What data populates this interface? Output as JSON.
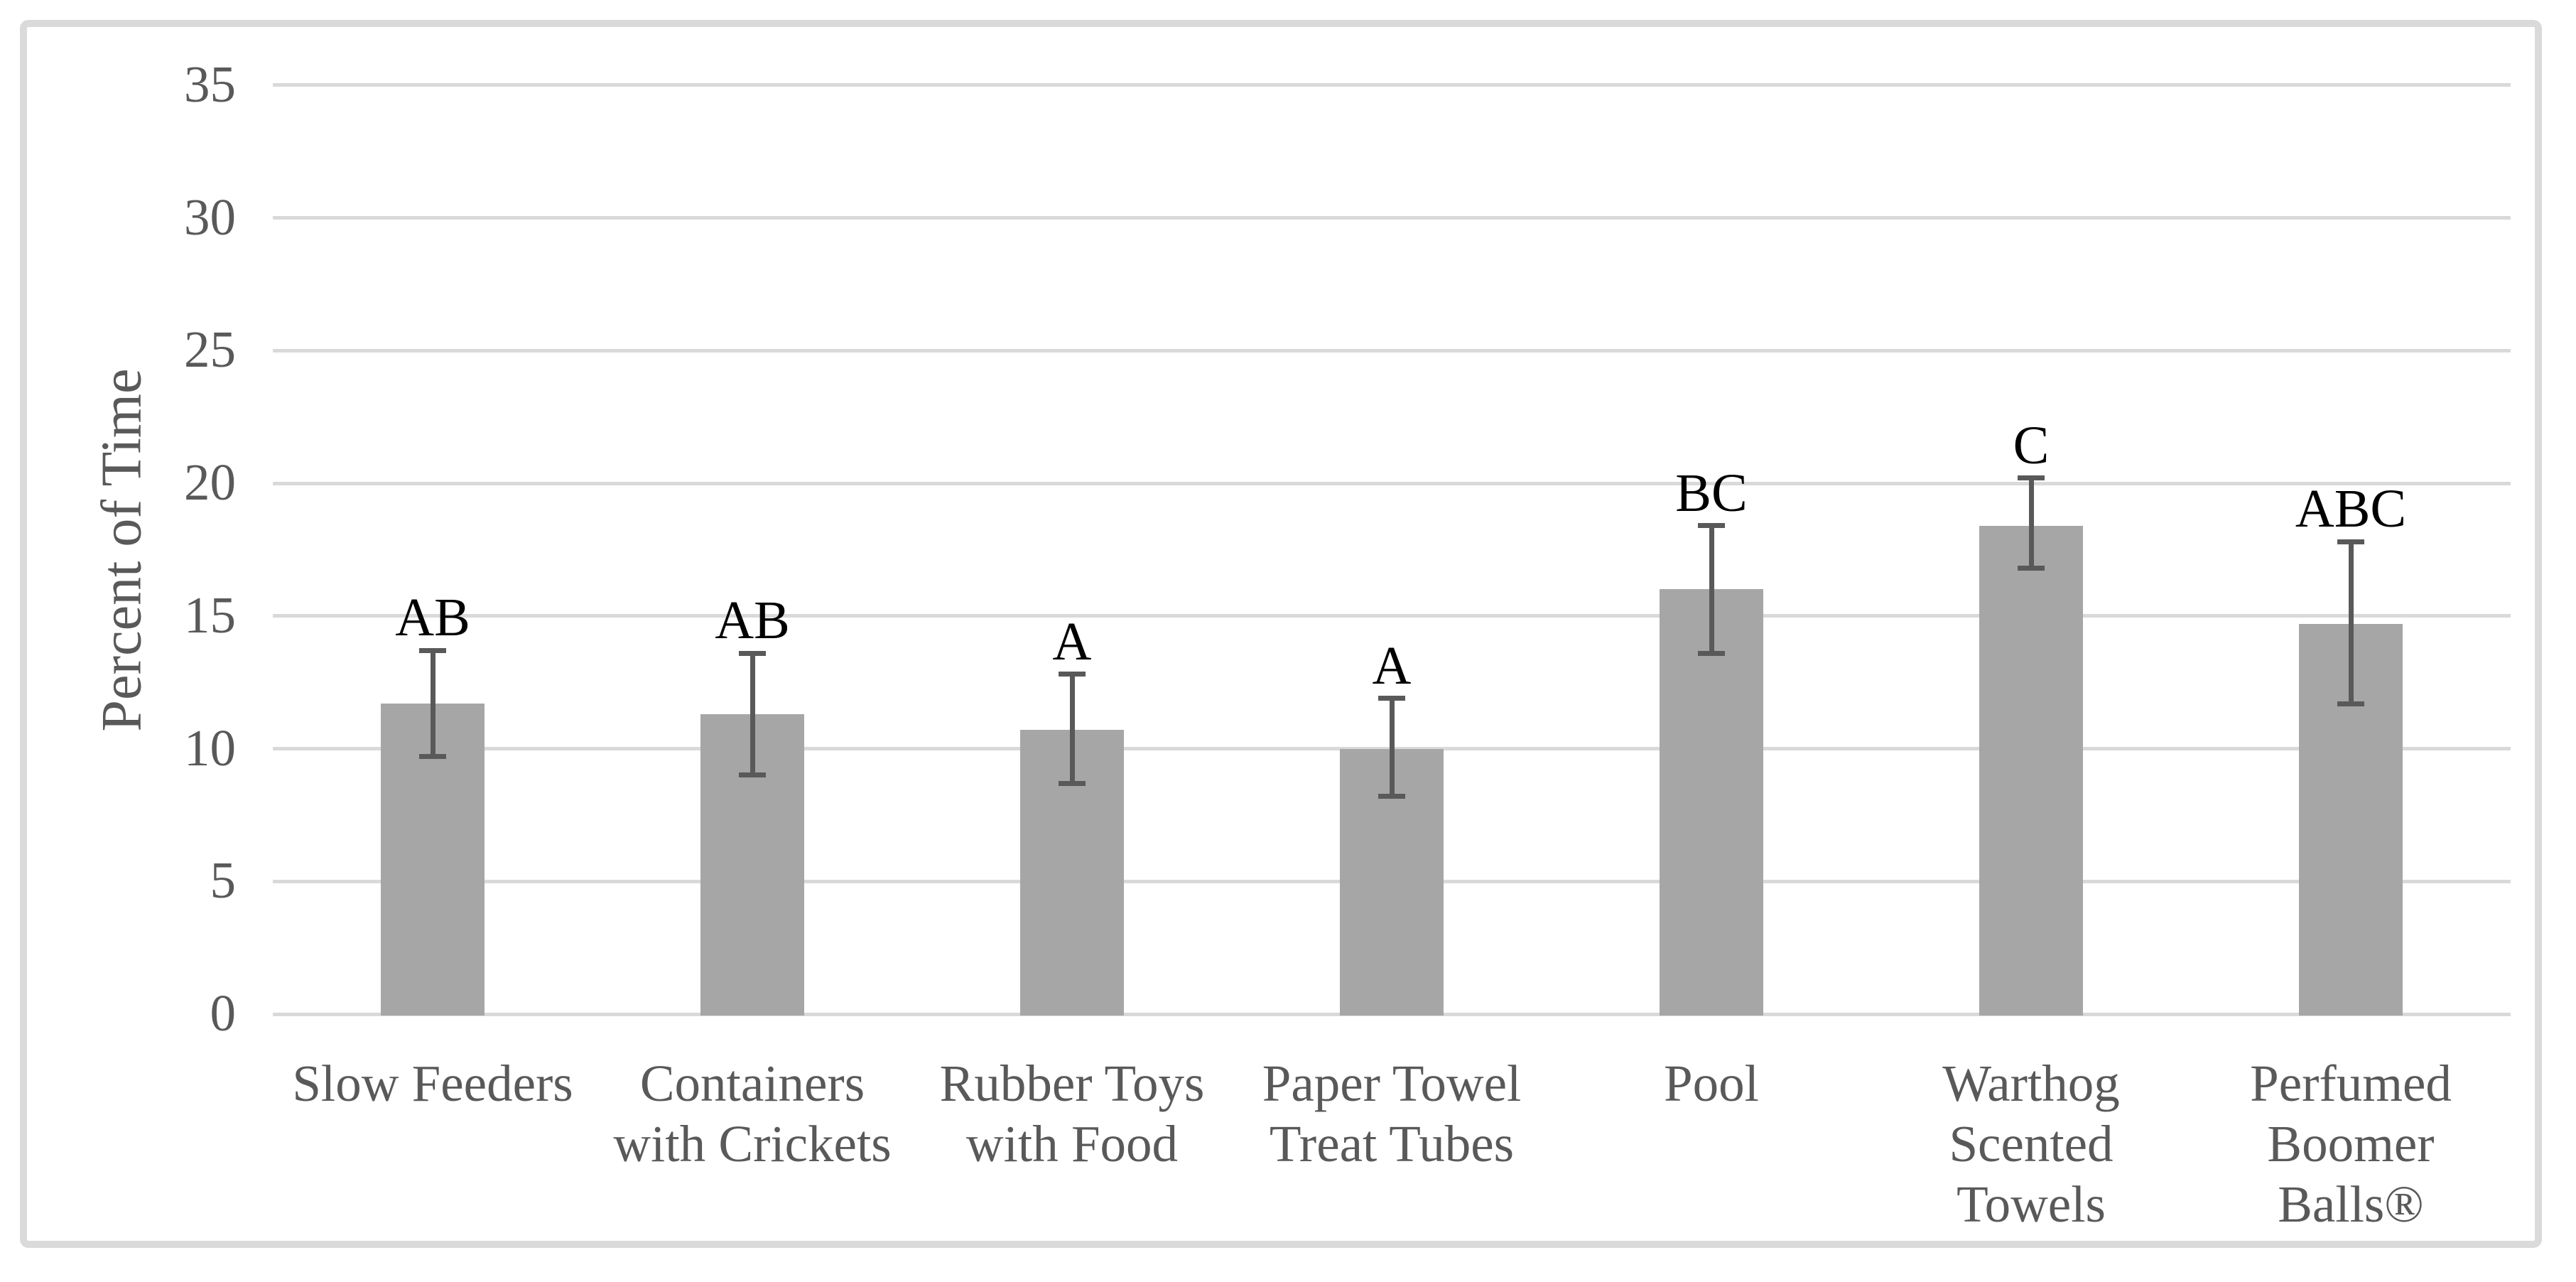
{
  "chart_data": {
    "type": "bar",
    "title": "",
    "xlabel": "",
    "ylabel": "Percent of Time",
    "ylim": [
      0,
      35
    ],
    "yticks": [
      0,
      5,
      10,
      15,
      20,
      25,
      30,
      35
    ],
    "grid": true,
    "legend": "none",
    "categories": [
      "Slow Feeders",
      "Containers with Crickets",
      "Rubber Toys with Food",
      "Paper Towel Treat Tubes",
      "Pool",
      "Warthog Scented Towels",
      "Perfumed Boomer Balls®"
    ],
    "category_label_lines": [
      [
        "Slow Feeders"
      ],
      [
        "Containers",
        "with Crickets"
      ],
      [
        "Rubber Toys",
        "with Food"
      ],
      [
        "Paper Towel",
        "Treat Tubes"
      ],
      [
        "Pool"
      ],
      [
        "Warthog",
        "Scented",
        "Towels"
      ],
      [
        "Perfumed",
        "Boomer",
        "Balls®"
      ]
    ],
    "series": [
      {
        "name": "Percent of Time",
        "values": [
          11.7,
          11.3,
          10.7,
          10.0,
          16.0,
          18.4,
          14.7
        ],
        "error_low": [
          9.7,
          9.0,
          8.7,
          8.2,
          13.6,
          16.8,
          11.7
        ],
        "error_high": [
          13.7,
          13.6,
          12.8,
          11.9,
          18.4,
          20.2,
          17.8
        ]
      }
    ],
    "significance_letters": [
      "AB",
      "AB",
      "A",
      "A",
      "BC",
      "C",
      "ABC"
    ],
    "colors": {
      "bar": "#a6a6a6",
      "error_bar": "#595959",
      "gridline": "#d9d9d9",
      "axis_text": "#595959",
      "letter_text": "#000000",
      "frame_border": "#dadada",
      "background": "#ffffff"
    }
  }
}
